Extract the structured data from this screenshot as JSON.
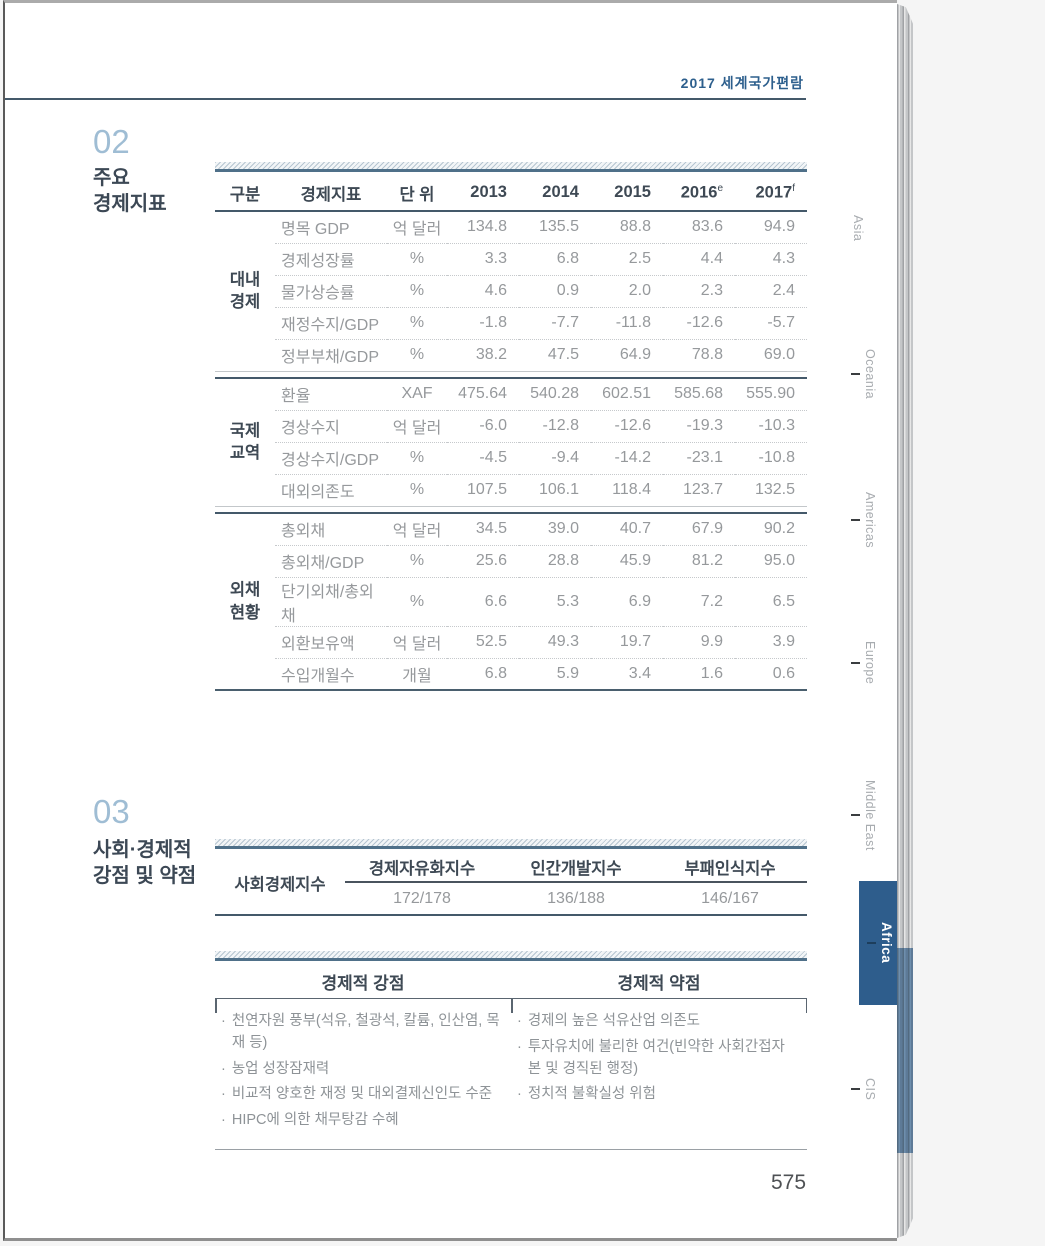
{
  "page": {
    "header": "2017 세계국가편람",
    "page_number": "575"
  },
  "colors": {
    "accent_navy": "#2e5d8c",
    "rule_navy": "#44596a",
    "section_number_blue": "#9fbdd4"
  },
  "side_tabs": {
    "items": [
      {
        "label": "Asia",
        "active": false
      },
      {
        "label": "Oceania",
        "active": false
      },
      {
        "label": "Americas",
        "active": false
      },
      {
        "label": "Europe",
        "active": false
      },
      {
        "label": "Middle East",
        "active": false
      },
      {
        "label": "Africa",
        "active": true
      },
      {
        "label": "CIS",
        "active": false
      }
    ]
  },
  "section02": {
    "number": "02",
    "title_line1": "주요",
    "title_line2": "경제지표",
    "table": {
      "headers": [
        "구분",
        "경제지표",
        "단 위",
        "2013",
        "2014",
        "2015",
        "2016",
        "2017"
      ],
      "sup_2016": "e",
      "sup_2017": "f",
      "groups": [
        {
          "name": "대내경제",
          "name_lines": [
            "대내",
            "경제"
          ],
          "rows": [
            {
              "indicator": "명목 GDP",
              "unit": "억 달러",
              "values": [
                "134.8",
                "135.5",
                "88.8",
                "83.6",
                "94.9"
              ]
            },
            {
              "indicator": "경제성장률",
              "unit": "%",
              "values": [
                "3.3",
                "6.8",
                "2.5",
                "4.4",
                "4.3"
              ]
            },
            {
              "indicator": "물가상승률",
              "unit": "%",
              "values": [
                "4.6",
                "0.9",
                "2.0",
                "2.3",
                "2.4"
              ]
            },
            {
              "indicator": "재정수지/GDP",
              "unit": "%",
              "values": [
                "-1.8",
                "-7.7",
                "-11.8",
                "-12.6",
                "-5.7"
              ]
            },
            {
              "indicator": "정부부채/GDP",
              "unit": "%",
              "values": [
                "38.2",
                "47.5",
                "64.9",
                "78.8",
                "69.0"
              ]
            }
          ]
        },
        {
          "name": "국제교역",
          "name_lines": [
            "국제",
            "교역"
          ],
          "rows": [
            {
              "indicator": "환율",
              "unit": "XAF",
              "values": [
                "475.64",
                "540.28",
                "602.51",
                "585.68",
                "555.90"
              ]
            },
            {
              "indicator": "경상수지",
              "unit": "억 달러",
              "values": [
                "-6.0",
                "-12.8",
                "-12.6",
                "-19.3",
                "-10.3"
              ]
            },
            {
              "indicator": "경상수지/GDP",
              "unit": "%",
              "values": [
                "-4.5",
                "-9.4",
                "-14.2",
                "-23.1",
                "-10.8"
              ]
            },
            {
              "indicator": "대외의존도",
              "unit": "%",
              "values": [
                "107.5",
                "106.1",
                "118.4",
                "123.7",
                "132.5"
              ]
            }
          ]
        },
        {
          "name": "외채현황",
          "name_lines": [
            "외채",
            "현황"
          ],
          "rows": [
            {
              "indicator": "총외채",
              "unit": "억 달러",
              "values": [
                "34.5",
                "39.0",
                "40.7",
                "67.9",
                "90.2"
              ]
            },
            {
              "indicator": "총외채/GDP",
              "unit": "%",
              "values": [
                "25.6",
                "28.8",
                "45.9",
                "81.2",
                "95.0"
              ]
            },
            {
              "indicator": "단기외채/총외채",
              "unit": "%",
              "values": [
                "6.6",
                "5.3",
                "6.9",
                "7.2",
                "6.5"
              ]
            },
            {
              "indicator": "외환보유액",
              "unit": "억 달러",
              "values": [
                "52.5",
                "49.3",
                "19.7",
                "9.9",
                "3.9"
              ]
            },
            {
              "indicator": "수입개월수",
              "unit": "개월",
              "values": [
                "6.8",
                "5.9",
                "3.4",
                "1.6",
                "0.6"
              ]
            }
          ]
        }
      ]
    }
  },
  "section03": {
    "number": "03",
    "title_line1": "사회·경제적",
    "title_line2": "강점 및 약점",
    "index_table": {
      "row_label": "사회경제지수",
      "columns": [
        {
          "header": "경제자유화지수",
          "value": "172/178"
        },
        {
          "header": "인간개발지수",
          "value": "136/188"
        },
        {
          "header": "부패인식지수",
          "value": "146/167"
        }
      ]
    },
    "swot": {
      "bullet": "·",
      "strengths_header": "경제적 강점",
      "weaknesses_header": "경제적 약점",
      "strengths": [
        "천연자원 풍부(석유, 철광석, 칼륨, 인산염, 목재 등)",
        "농업 성장잠재력",
        "비교적 양호한 재정 및 대외결제신인도 수준",
        "HIPC에 의한 채무탕감 수혜"
      ],
      "weaknesses": [
        "경제의 높은 석유산업 의존도",
        "투자유치에 불리한 여건(빈약한 사회간접자본 및 경직된 행정)",
        "정치적 불확실성 위험"
      ]
    }
  }
}
